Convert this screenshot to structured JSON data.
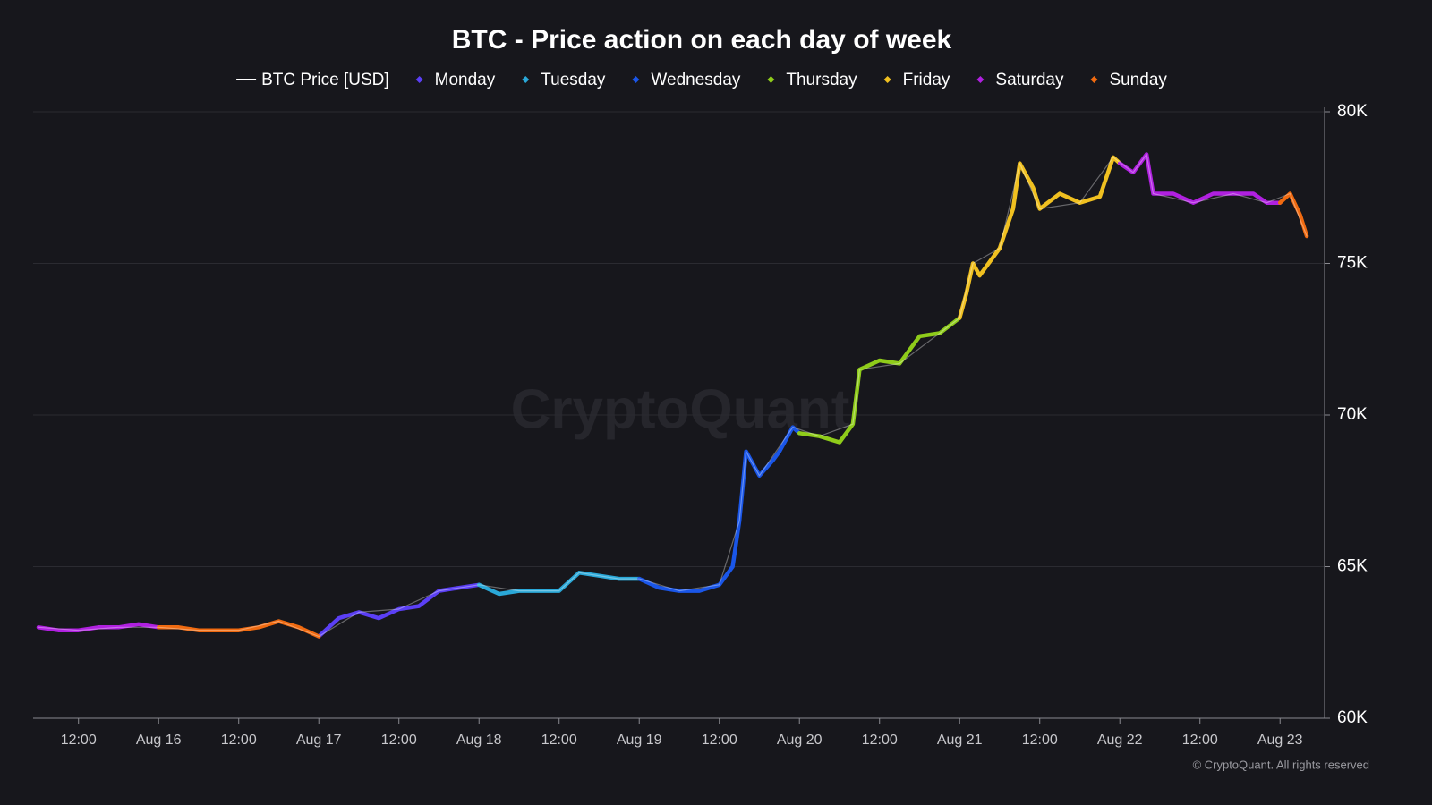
{
  "chart_data": {
    "type": "line",
    "title": "BTC - Price action on each day of week",
    "watermark": "CryptoQuant",
    "credit": "© CryptoQuant. All rights reserved",
    "xlim": [
      -18.8,
      173.6
    ],
    "xticks": [
      {
        "value": -12,
        "label": "12:00"
      },
      {
        "value": 0,
        "label": "Aug 16"
      },
      {
        "value": 12,
        "label": "12:00"
      },
      {
        "value": 24,
        "label": "Aug 17"
      },
      {
        "value": 36,
        "label": "12:00"
      },
      {
        "value": 48,
        "label": "Aug 18"
      },
      {
        "value": 60,
        "label": "12:00"
      },
      {
        "value": 72,
        "label": "Aug 19"
      },
      {
        "value": 84,
        "label": "12:00"
      },
      {
        "value": 96,
        "label": "Aug 20"
      },
      {
        "value": 108,
        "label": "12:00"
      },
      {
        "value": 120,
        "label": "Aug 21"
      },
      {
        "value": 132,
        "label": "12:00"
      },
      {
        "value": 144,
        "label": "Aug 22"
      },
      {
        "value": 156,
        "label": "12:00"
      },
      {
        "value": 168,
        "label": "Aug 23"
      }
    ],
    "ylim": [
      60000,
      80000
    ],
    "yticks": [
      {
        "value": 60000,
        "label": "60K"
      },
      {
        "value": 65000,
        "label": "65K"
      },
      {
        "value": 70000,
        "label": "70K"
      },
      {
        "value": 75000,
        "label": "75K"
      },
      {
        "value": 80000,
        "label": "80K"
      }
    ],
    "grid": true,
    "legend": "top",
    "series": [
      {
        "name": "BTC Price [USD]",
        "color": "#ffffff",
        "x": [
          -18,
          -12,
          -6,
          0,
          6,
          12,
          18,
          24,
          30,
          36,
          42,
          48,
          54,
          60,
          63,
          69,
          72,
          78,
          84,
          87,
          88,
          90,
          95,
          99,
          104,
          105,
          111,
          117,
          120,
          122,
          126,
          129,
          132,
          138,
          143,
          146,
          148,
          149,
          155,
          161,
          166,
          169.5,
          172
        ],
        "values": [
          63000,
          62900,
          63000,
          63000,
          62900,
          62900,
          63200,
          62700,
          63500,
          63600,
          64200,
          64400,
          64200,
          64200,
          64800,
          64600,
          64600,
          64200,
          64400,
          66500,
          68800,
          68000,
          69600,
          69300,
          69700,
          71500,
          71700,
          72700,
          73200,
          75000,
          75500,
          78300,
          76800,
          77000,
          78500,
          78000,
          78600,
          77300,
          77000,
          77300,
          77000,
          77300,
          75900
        ]
      },
      {
        "name": "Monday",
        "color": "#5b3ff5",
        "x": [
          24,
          27,
          30,
          33,
          36,
          39,
          42,
          45,
          48
        ],
        "values": [
          62700,
          63300,
          63500,
          63300,
          63600,
          63700,
          64200,
          64300,
          64400
        ]
      },
      {
        "name": "Tuesday",
        "color": "#2aa8d8",
        "x": [
          48,
          51,
          54,
          57,
          60,
          63,
          66,
          69,
          72
        ],
        "values": [
          64400,
          64100,
          64200,
          64200,
          64200,
          64800,
          64700,
          64600,
          64600
        ]
      },
      {
        "name": "Wednesday",
        "color": "#1a56e8",
        "x": [
          72,
          75,
          78,
          81,
          84,
          86,
          87,
          88,
          90,
          92,
          93,
          95,
          96
        ],
        "values": [
          64600,
          64300,
          64200,
          64200,
          64400,
          65000,
          66500,
          68800,
          68000,
          68500,
          68800,
          69600,
          69400
        ]
      },
      {
        "name": "Thursday",
        "color": "#8fcc1a",
        "x": [
          96,
          99,
          102,
          104,
          105,
          108,
          111,
          114,
          117,
          120
        ],
        "values": [
          69400,
          69300,
          69100,
          69700,
          71500,
          71800,
          71700,
          72600,
          72700,
          73200
        ]
      },
      {
        "name": "Friday",
        "color": "#f0c020",
        "x": [
          120,
          121,
          122,
          123,
          126,
          128,
          129,
          131,
          132,
          135,
          138,
          141,
          143,
          144
        ],
        "values": [
          73200,
          74000,
          75000,
          74600,
          75500,
          76800,
          78300,
          77500,
          76800,
          77300,
          77000,
          77200,
          78500,
          78300
        ]
      },
      {
        "name": "Saturday",
        "color": "#b020e0",
        "x": [
          -18,
          -15,
          -12,
          -9,
          -6,
          -3,
          0,
          144,
          146,
          148,
          149,
          152,
          155,
          158,
          161,
          164,
          166,
          168
        ],
        "values": [
          63000,
          62900,
          62900,
          63000,
          63000,
          63100,
          63000,
          78300,
          78000,
          78600,
          77300,
          77300,
          77000,
          77300,
          77300,
          77300,
          77000,
          77000
        ]
      },
      {
        "name": "Sunday",
        "color": "#f06a10",
        "x": [
          0,
          3,
          6,
          9,
          12,
          15,
          18,
          21,
          24,
          168,
          169.5,
          171,
          172
        ],
        "values": [
          63000,
          63000,
          62900,
          62900,
          62900,
          63000,
          63200,
          63000,
          62700,
          77000,
          77300,
          76600,
          75900
        ]
      }
    ]
  }
}
